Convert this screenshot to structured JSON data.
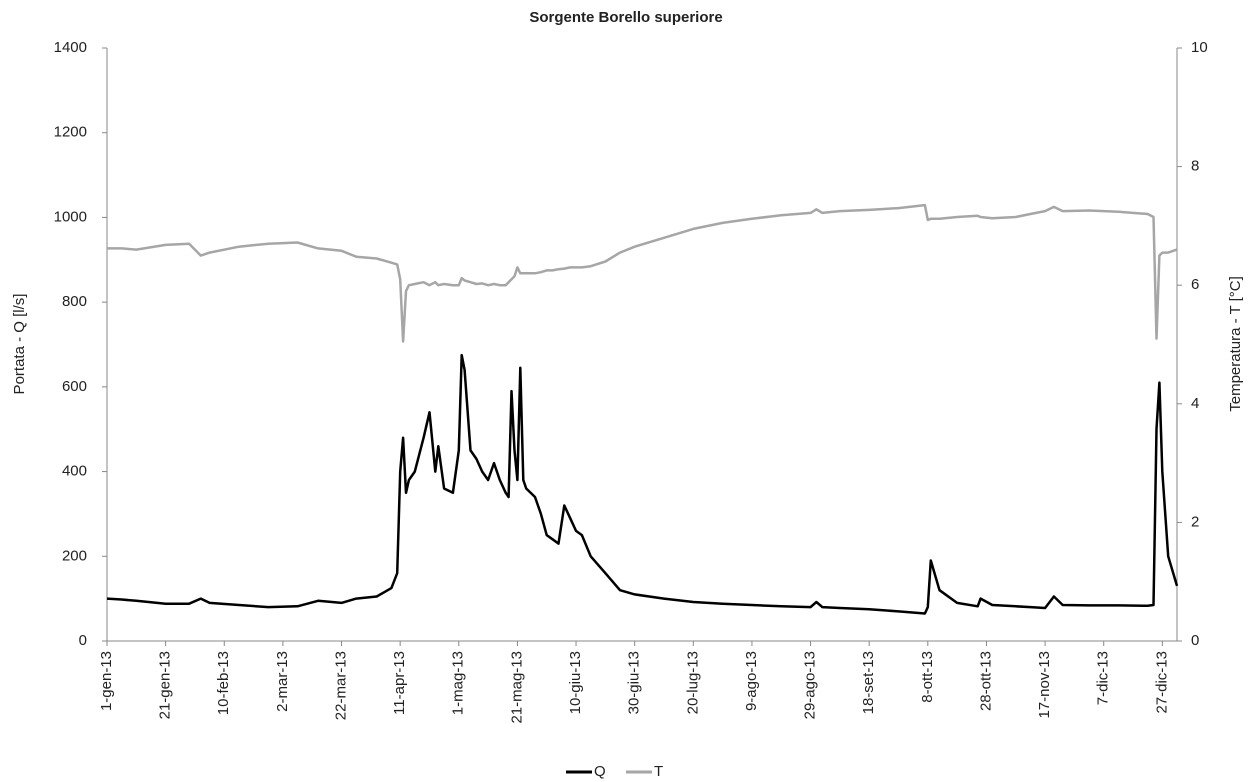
{
  "chart_data": {
    "type": "line",
    "title": "Sorgente Borello superiore",
    "y_label": "Portata - Q [l/s]",
    "y2_label": "Temperatura - T [°C]",
    "x": [
      0,
      5,
      10,
      20,
      28,
      32,
      35,
      45,
      55,
      65,
      72,
      80,
      85,
      92,
      97,
      99,
      100,
      101,
      102,
      103,
      105,
      108,
      110,
      112,
      113,
      115,
      118,
      120,
      121,
      122,
      124,
      126,
      128,
      130,
      132,
      134,
      136,
      137,
      138,
      139,
      140,
      141,
      142,
      143,
      146,
      148,
      150,
      152,
      154,
      156,
      158,
      160,
      162,
      165,
      170,
      175,
      180,
      190,
      200,
      210,
      220,
      230,
      240,
      242,
      244,
      250,
      260,
      270,
      279,
      280,
      281,
      284,
      290,
      297,
      298,
      302,
      310,
      315,
      320,
      323,
      326,
      335,
      345,
      355,
      357,
      358,
      359,
      360,
      362,
      365
    ],
    "series": [
      {
        "name": "Q",
        "color": "#000000",
        "values": [
          100,
          98,
          95,
          88,
          88,
          100,
          90,
          85,
          80,
          82,
          95,
          90,
          100,
          105,
          125,
          160,
          400,
          480,
          350,
          380,
          400,
          480,
          540,
          400,
          460,
          360,
          350,
          450,
          675,
          640,
          450,
          430,
          400,
          380,
          420,
          380,
          350,
          340,
          590,
          450,
          380,
          645,
          380,
          360,
          340,
          300,
          250,
          240,
          230,
          320,
          290,
          260,
          250,
          200,
          160,
          120,
          110,
          100,
          92,
          88,
          85,
          82,
          80,
          92,
          80,
          78,
          75,
          70,
          65,
          80,
          190,
          120,
          90,
          82,
          100,
          85,
          82,
          80,
          78,
          105,
          85,
          84,
          84,
          83,
          85,
          500,
          610,
          400,
          200,
          130
        ]
      },
      {
        "name": "T",
        "color": "#a6a6a6",
        "axis": "y2",
        "values": [
          6.62,
          6.62,
          6.6,
          6.68,
          6.7,
          6.5,
          6.55,
          6.65,
          6.7,
          6.72,
          6.62,
          6.58,
          6.48,
          6.45,
          6.38,
          6.35,
          6.1,
          5.05,
          5.9,
          6.0,
          6.02,
          6.05,
          6.0,
          6.05,
          6.0,
          6.02,
          6.0,
          6.0,
          6.12,
          6.08,
          6.05,
          6.02,
          6.03,
          6.0,
          6.02,
          6.0,
          6.0,
          6.05,
          6.1,
          6.15,
          6.3,
          6.2,
          6.2,
          6.2,
          6.2,
          6.22,
          6.25,
          6.25,
          6.27,
          6.28,
          6.3,
          6.3,
          6.3,
          6.32,
          6.4,
          6.55,
          6.65,
          6.8,
          6.95,
          7.05,
          7.12,
          7.18,
          7.22,
          7.28,
          7.22,
          7.25,
          7.27,
          7.3,
          7.35,
          7.1,
          7.12,
          7.12,
          7.15,
          7.17,
          7.15,
          7.13,
          7.15,
          7.2,
          7.25,
          7.32,
          7.25,
          7.26,
          7.24,
          7.2,
          7.15,
          5.1,
          6.5,
          6.55,
          6.55,
          6.6
        ]
      }
    ],
    "xlim": [
      0,
      365
    ],
    "xticks": [
      {
        "value": 0,
        "label": "1-gen-13"
      },
      {
        "value": 20,
        "label": "21-gen-13"
      },
      {
        "value": 40,
        "label": "10-feb-13"
      },
      {
        "value": 60,
        "label": "2-mar-13"
      },
      {
        "value": 80,
        "label": "22-mar-13"
      },
      {
        "value": 100,
        "label": "11-apr-13"
      },
      {
        "value": 120,
        "label": "1-mag-13"
      },
      {
        "value": 140,
        "label": "21-mag-13"
      },
      {
        "value": 160,
        "label": "10-giu-13"
      },
      {
        "value": 180,
        "label": "30-giu-13"
      },
      {
        "value": 200,
        "label": "20-lug-13"
      },
      {
        "value": 220,
        "label": "9-ago-13"
      },
      {
        "value": 240,
        "label": "29-ago-13"
      },
      {
        "value": 260,
        "label": "18-set-13"
      },
      {
        "value": 280,
        "label": "8-ott-13"
      },
      {
        "value": 300,
        "label": "28-ott-13"
      },
      {
        "value": 320,
        "label": "17-nov-13"
      },
      {
        "value": 340,
        "label": "7-dic-13"
      },
      {
        "value": 360,
        "label": "27-dic-13"
      }
    ],
    "ylim": [
      0,
      1400
    ],
    "yticks": [
      0,
      200,
      400,
      600,
      800,
      1000,
      1200,
      1400
    ],
    "y2lim": [
      0,
      10
    ],
    "y2ticks": [
      0,
      2,
      4,
      6,
      8,
      10
    ],
    "grid": false,
    "legend": "bottom"
  }
}
